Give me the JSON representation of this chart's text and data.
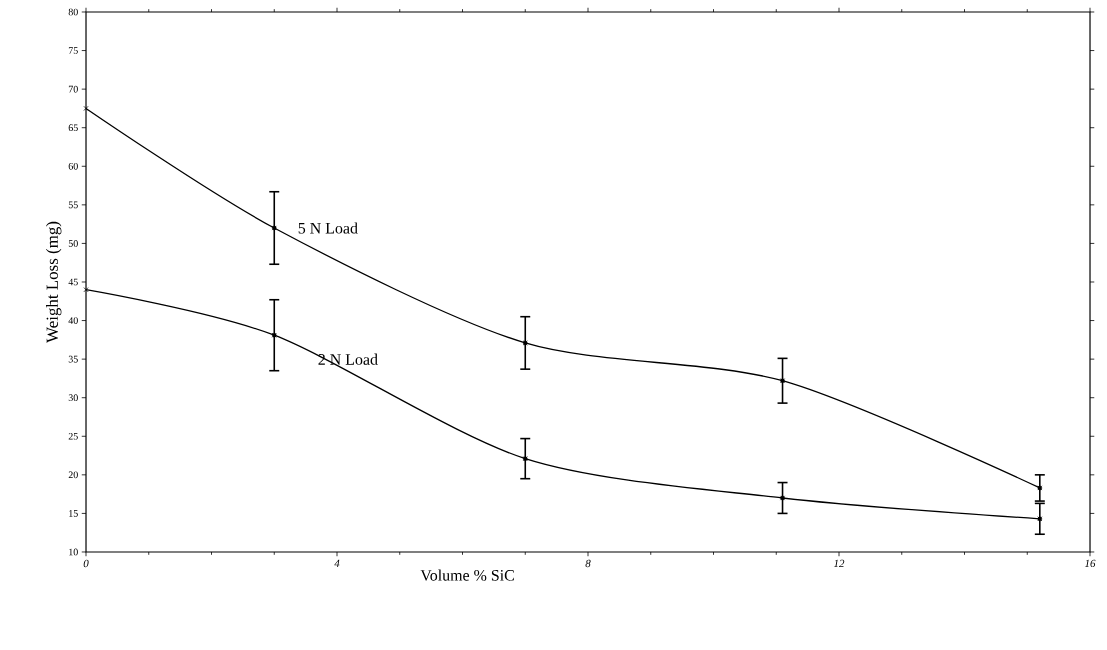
{
  "chart_data": {
    "type": "line",
    "xlabel": "Volume % SiC",
    "ylabel": "Weight Loss (mg)",
    "x": [
      0,
      3,
      7,
      11.1,
      15.2
    ],
    "series": [
      {
        "name": "5 N Load",
        "color": "#000000",
        "values": [
          67.5,
          52,
          37.1,
          32.2,
          18.3
        ],
        "errors": [
          null,
          4.7,
          3.4,
          2.9,
          1.7
        ]
      },
      {
        "name": "2 N Load",
        "color": "#000000",
        "values": [
          44,
          38.1,
          22.1,
          17,
          14.3
        ],
        "errors": [
          null,
          4.6,
          2.6,
          2,
          2
        ]
      }
    ],
    "xlim": [
      0,
      16
    ],
    "xticks": [
      0,
      4,
      8,
      12,
      16
    ],
    "ylim": [
      10,
      80
    ],
    "yticks": [
      10,
      15,
      20,
      25,
      30,
      35,
      40,
      45,
      50,
      55,
      60,
      65,
      70,
      75,
      80
    ],
    "marker": "cross",
    "line_style": "solid"
  }
}
